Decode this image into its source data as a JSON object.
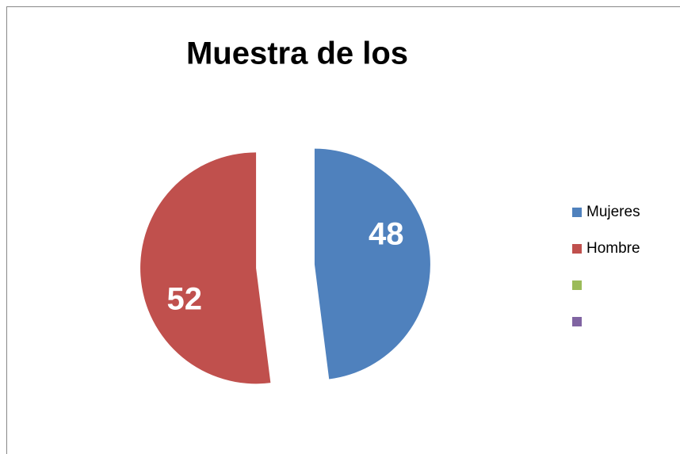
{
  "chart_data": {
    "type": "pie",
    "title": "Muestra de los",
    "categories": [
      "Mujeres",
      "Hombre",
      null,
      null
    ],
    "values": [
      48,
      52,
      null,
      null
    ],
    "colors": [
      "#4f81bd",
      "#c0504d",
      "#9bbb59",
      "#8064a2"
    ],
    "legend": "right"
  }
}
